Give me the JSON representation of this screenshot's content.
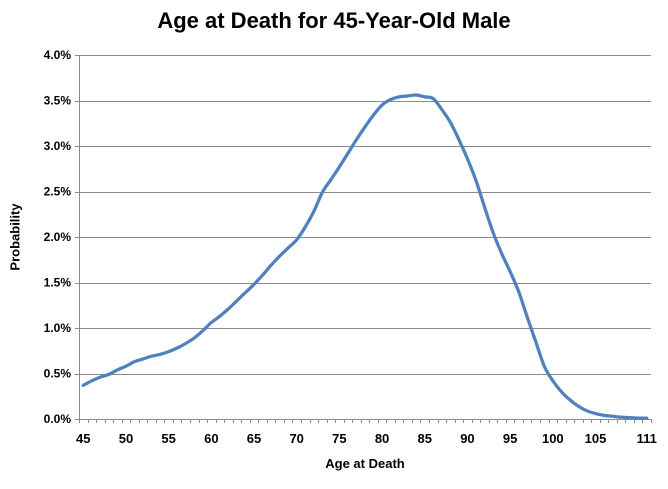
{
  "chart_data": {
    "type": "line",
    "title": "Age at Death for 45-Year-Old Male",
    "xlabel": "Age at Death",
    "ylabel": "Probability",
    "x": [
      45,
      46,
      47,
      48,
      49,
      50,
      51,
      52,
      53,
      54,
      55,
      56,
      57,
      58,
      59,
      60,
      61,
      62,
      63,
      64,
      65,
      66,
      67,
      68,
      69,
      70,
      71,
      72,
      73,
      74,
      75,
      76,
      77,
      78,
      79,
      80,
      81,
      82,
      83,
      84,
      85,
      86,
      87,
      88,
      89,
      90,
      91,
      92,
      93,
      94,
      95,
      96,
      97,
      98,
      99,
      100,
      101,
      102,
      103,
      104,
      105,
      106,
      107,
      108,
      109,
      110,
      111
    ],
    "values_percent": [
      0.37,
      0.42,
      0.46,
      0.49,
      0.54,
      0.58,
      0.63,
      0.66,
      0.69,
      0.71,
      0.74,
      0.78,
      0.83,
      0.89,
      0.97,
      1.06,
      1.13,
      1.21,
      1.3,
      1.39,
      1.48,
      1.58,
      1.69,
      1.79,
      1.88,
      1.97,
      2.11,
      2.28,
      2.49,
      2.63,
      2.77,
      2.92,
      3.07,
      3.21,
      3.34,
      3.45,
      3.51,
      3.54,
      3.55,
      3.56,
      3.54,
      3.52,
      3.4,
      3.26,
      3.07,
      2.86,
      2.62,
      2.33,
      2.05,
      1.82,
      1.62,
      1.4,
      1.12,
      0.85,
      0.58,
      0.42,
      0.3,
      0.21,
      0.14,
      0.09,
      0.06,
      0.04,
      0.03,
      0.02,
      0.015,
      0.01,
      0.01
    ],
    "x_tick_labels": [
      "45",
      "50",
      "55",
      "60",
      "65",
      "70",
      "75",
      "80",
      "85",
      "90",
      "95",
      "100",
      "105",
      "111"
    ],
    "y_tick_labels": [
      "0.0%",
      "0.5%",
      "1.0%",
      "1.5%",
      "2.0%",
      "2.5%",
      "3.0%",
      "3.5%",
      "4.0%"
    ],
    "ylim": [
      0,
      4
    ],
    "y_tick_step": 0.5,
    "grid": true,
    "legend": false,
    "smooth_line": true,
    "line_color": "#4F81BD",
    "grid_color": "#8C8C8C",
    "axis_color": "#8C8C8C",
    "text_color": "#000000",
    "background": "#FFFFFF"
  }
}
